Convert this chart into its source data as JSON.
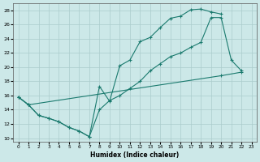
{
  "xlabel": "Humidex (Indice chaleur)",
  "background_color": "#cce8e8",
  "grid_color": "#aacccc",
  "line_color": "#1a7a6e",
  "xlim": [
    -0.5,
    23.5
  ],
  "ylim": [
    9.5,
    29
  ],
  "xticks": [
    0,
    1,
    2,
    3,
    4,
    5,
    6,
    7,
    8,
    9,
    10,
    11,
    12,
    13,
    14,
    15,
    16,
    17,
    18,
    19,
    20,
    21,
    22,
    23
  ],
  "yticks": [
    10,
    12,
    14,
    16,
    18,
    20,
    22,
    24,
    26,
    28
  ],
  "line1_x": [
    0,
    1,
    2,
    3,
    4,
    5,
    6,
    7,
    8,
    9,
    10,
    11,
    12,
    13,
    14,
    15,
    16,
    17,
    18,
    19,
    20
  ],
  "line1_y": [
    15.8,
    14.7,
    13.2,
    12.8,
    12.3,
    11.5,
    11.0,
    10.2,
    17.3,
    15.2,
    20.2,
    21.0,
    23.6,
    24.2,
    25.6,
    26.9,
    27.2,
    28.1,
    28.2,
    27.8,
    27.5
  ],
  "line2_x": [
    0,
    1,
    2,
    3,
    4,
    5,
    6,
    7,
    8,
    9,
    10,
    11,
    12,
    13,
    14,
    15,
    16,
    17,
    18,
    19,
    20,
    21,
    22
  ],
  "line2_y": [
    15.8,
    14.7,
    13.2,
    12.8,
    12.3,
    11.5,
    11.0,
    10.2,
    14.0,
    15.3,
    16.0,
    17.0,
    18.0,
    19.5,
    20.5,
    21.5,
    22.0,
    22.8,
    23.5,
    27.0,
    27.0,
    21.0,
    19.5
  ],
  "line3_x": [
    0,
    1,
    20,
    22
  ],
  "line3_y": [
    15.8,
    14.7,
    18.8,
    19.3
  ]
}
